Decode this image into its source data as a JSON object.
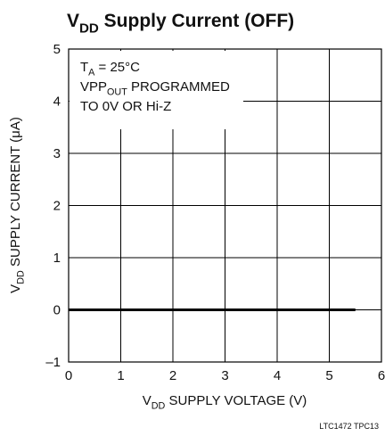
{
  "chart_data": {
    "type": "line",
    "title": [
      {
        "text": "V"
      },
      {
        "text": "DD",
        "sub": true
      },
      {
        "text": " Supply Current (OFF)"
      }
    ],
    "x_label": [
      {
        "text": "V"
      },
      {
        "text": "DD",
        "sub": true
      },
      {
        "text": " SUPPLY VOLTAGE (V)"
      }
    ],
    "y_label": [
      {
        "text": "V"
      },
      {
        "text": "DD",
        "sub": true
      },
      {
        "text": " SUPPLY CURRENT (μA)"
      }
    ],
    "annotation": [
      [
        {
          "text": "T"
        },
        {
          "text": "A",
          "sub": true
        },
        {
          "text": " = 25°C"
        }
      ],
      [
        {
          "text": "VPP"
        },
        {
          "text": "OUT",
          "sub": true
        },
        {
          "text": " PROGRAMMED"
        }
      ],
      [
        {
          "text": "TO 0V OR Hi-Z"
        }
      ]
    ],
    "footnote": "LTC1472 TPC13",
    "x": [
      0,
      5.5
    ],
    "series": [
      {
        "color": "#000000",
        "values": [
          0,
          0
        ]
      }
    ],
    "xlim": [
      0,
      6
    ],
    "xticks": [
      0,
      1,
      2,
      3,
      4,
      5,
      6
    ],
    "ylim": [
      -1,
      5
    ],
    "yticks": [
      {
        "value": -1,
        "label": "–1"
      },
      0,
      1,
      2,
      3,
      4,
      5
    ],
    "grid": true
  }
}
